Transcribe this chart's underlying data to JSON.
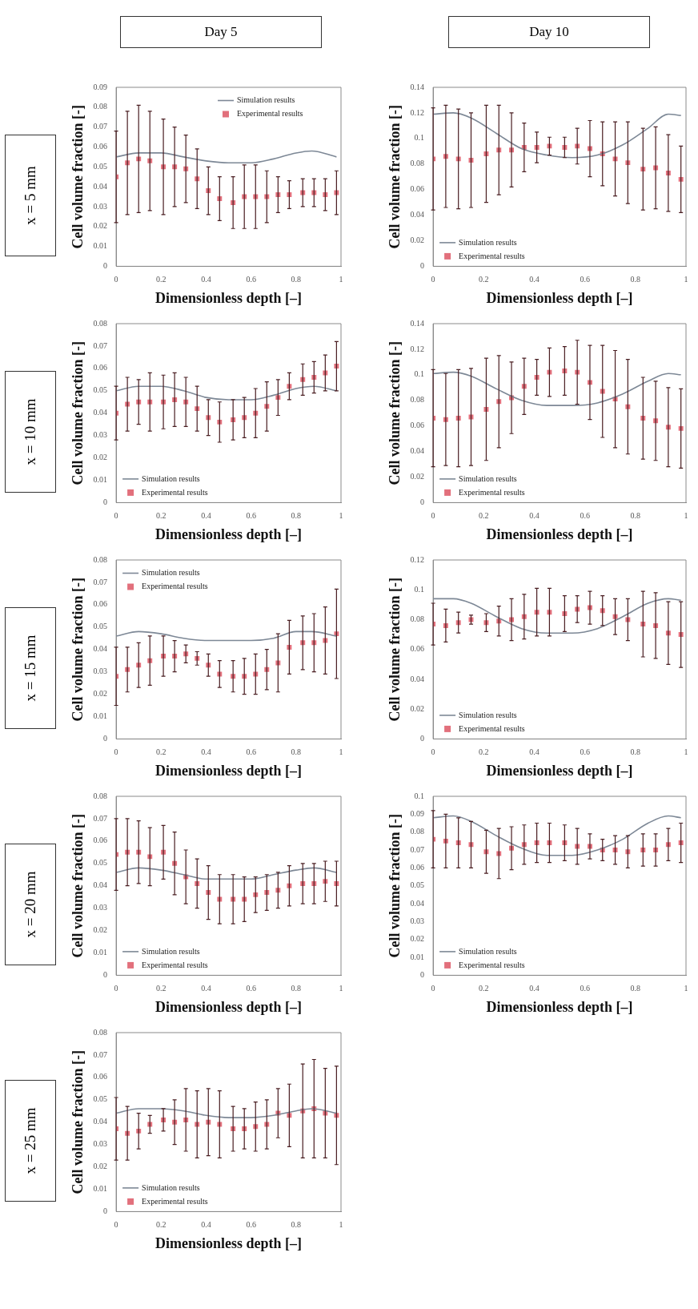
{
  "chart_data": [
    {
      "type": "scatter",
      "title": "Day 5",
      "subtitle": "x = 5 mm",
      "xlabel": "Dimensionless depth [–]",
      "ylabel": "Cell volume fraction [-]",
      "xlim": [
        0,
        1
      ],
      "xticks": [
        0,
        0.2,
        0.4,
        0.6,
        0.8,
        1
      ],
      "ylim": [
        0,
        0.09
      ],
      "yticks": [
        0,
        0.01,
        0.02,
        0.03,
        0.04,
        0.05,
        0.06,
        0.07,
        0.08,
        0.09
      ],
      "legend": "top right",
      "series": [
        {
          "name": "Simulation results",
          "type": "line",
          "marker": "none",
          "color": "#7d8896",
          "x": [
            0,
            0.1,
            0.2,
            0.3,
            0.4,
            0.5,
            0.6,
            0.7,
            0.8,
            0.87,
            0.98
          ],
          "values": [
            0.055,
            0.057,
            0.057,
            0.055,
            0.053,
            0.052,
            0.052,
            0.054,
            0.057,
            0.058,
            0.055
          ]
        },
        {
          "name": "Experimental results",
          "type": "scatter",
          "marker": "square",
          "color": "#e2707c",
          "x": [
            0,
            0.05,
            0.1,
            0.15,
            0.21,
            0.26,
            0.31,
            0.36,
            0.41,
            0.46,
            0.52,
            0.57,
            0.62,
            0.67,
            0.72,
            0.77,
            0.83,
            0.88,
            0.93,
            0.98
          ],
          "values": [
            0.045,
            0.052,
            0.054,
            0.053,
            0.05,
            0.05,
            0.049,
            0.044,
            0.038,
            0.034,
            0.032,
            0.035,
            0.035,
            0.035,
            0.036,
            0.036,
            0.037,
            0.037,
            0.036,
            0.037
          ],
          "errors": [
            0.023,
            0.026,
            0.027,
            0.025,
            0.024,
            0.02,
            0.017,
            0.015,
            0.012,
            0.011,
            0.013,
            0.016,
            0.016,
            0.013,
            0.009,
            0.007,
            0.007,
            0.007,
            0.008,
            0.011
          ]
        }
      ]
    },
    {
      "type": "scatter",
      "title": "Day 10",
      "xlabel": "Dimensionless depth [–]",
      "ylabel": "Cell volume fraction [-]",
      "xlim": [
        0,
        1
      ],
      "xticks": [
        0,
        0.2,
        0.4,
        0.6,
        0.8,
        1
      ],
      "ylim": [
        0,
        0.14
      ],
      "yticks": [
        0,
        0.02,
        0.04,
        0.06,
        0.08,
        0.1,
        0.12,
        0.14
      ],
      "legend": "bottom left",
      "series": [
        {
          "name": "Simulation results",
          "type": "line",
          "marker": "none",
          "color": "#7d8896",
          "x": [
            0,
            0.08,
            0.15,
            0.25,
            0.35,
            0.45,
            0.55,
            0.65,
            0.75,
            0.85,
            0.93,
            0.98
          ],
          "values": [
            0.119,
            0.12,
            0.116,
            0.104,
            0.092,
            0.087,
            0.085,
            0.087,
            0.095,
            0.108,
            0.119,
            0.118
          ]
        },
        {
          "name": "Experimental results",
          "type": "scatter",
          "marker": "square",
          "color": "#e2707c",
          "x": [
            0,
            0.05,
            0.1,
            0.15,
            0.21,
            0.26,
            0.31,
            0.36,
            0.41,
            0.46,
            0.52,
            0.57,
            0.62,
            0.67,
            0.72,
            0.77,
            0.83,
            0.88,
            0.93,
            0.98
          ],
          "values": [
            0.084,
            0.086,
            0.084,
            0.083,
            0.088,
            0.091,
            0.091,
            0.093,
            0.093,
            0.094,
            0.093,
            0.094,
            0.092,
            0.088,
            0.084,
            0.081,
            0.076,
            0.077,
            0.073,
            0.068
          ],
          "errors": [
            0.04,
            0.04,
            0.039,
            0.037,
            0.038,
            0.035,
            0.029,
            0.019,
            0.012,
            0.007,
            0.008,
            0.014,
            0.022,
            0.025,
            0.029,
            0.032,
            0.032,
            0.032,
            0.03,
            0.026
          ]
        }
      ]
    },
    {
      "type": "scatter",
      "subtitle": "x = 10 mm",
      "xlabel": "Dimensionless depth [–]",
      "ylabel": "Cell volume fraction [-]",
      "xlim": [
        0,
        1
      ],
      "xticks": [
        0,
        0.2,
        0.4,
        0.6,
        0.8,
        1
      ],
      "ylim": [
        0,
        0.08
      ],
      "yticks": [
        0,
        0.01,
        0.02,
        0.03,
        0.04,
        0.05,
        0.06,
        0.07,
        0.08
      ],
      "legend": "bottom left",
      "series": [
        {
          "name": "Simulation results",
          "type": "line",
          "marker": "none",
          "color": "#7d8896",
          "x": [
            0,
            0.1,
            0.2,
            0.3,
            0.4,
            0.5,
            0.6,
            0.7,
            0.8,
            0.88,
            0.98
          ],
          "values": [
            0.05,
            0.052,
            0.052,
            0.05,
            0.047,
            0.046,
            0.046,
            0.048,
            0.051,
            0.052,
            0.05
          ]
        },
        {
          "name": "Experimental results",
          "type": "scatter",
          "marker": "square",
          "color": "#e2707c",
          "x": [
            0,
            0.05,
            0.1,
            0.15,
            0.21,
            0.26,
            0.31,
            0.36,
            0.41,
            0.46,
            0.52,
            0.57,
            0.62,
            0.67,
            0.72,
            0.77,
            0.83,
            0.88,
            0.93,
            0.98
          ],
          "values": [
            0.04,
            0.044,
            0.045,
            0.045,
            0.045,
            0.046,
            0.045,
            0.042,
            0.038,
            0.036,
            0.037,
            0.038,
            0.04,
            0.043,
            0.047,
            0.052,
            0.055,
            0.056,
            0.058,
            0.061
          ],
          "errors": [
            0.012,
            0.012,
            0.01,
            0.013,
            0.012,
            0.012,
            0.011,
            0.01,
            0.008,
            0.009,
            0.009,
            0.009,
            0.011,
            0.011,
            0.008,
            0.006,
            0.007,
            0.007,
            0.008,
            0.011
          ]
        }
      ]
    },
    {
      "type": "scatter",
      "xlabel": "Dimensionless depth [–]",
      "ylabel": "Cell volume fraction [-]",
      "xlim": [
        0,
        1
      ],
      "xticks": [
        0,
        0.2,
        0.4,
        0.6,
        0.8,
        1
      ],
      "ylim": [
        0,
        0.14
      ],
      "yticks": [
        0,
        0.02,
        0.04,
        0.06,
        0.08,
        0.1,
        0.12,
        0.14
      ],
      "legend": "bottom left",
      "series": [
        {
          "name": "Simulation results",
          "type": "line",
          "marker": "none",
          "color": "#7d8896",
          "x": [
            0,
            0.08,
            0.15,
            0.25,
            0.35,
            0.45,
            0.55,
            0.65,
            0.75,
            0.85,
            0.93,
            0.98
          ],
          "values": [
            0.101,
            0.102,
            0.099,
            0.089,
            0.08,
            0.076,
            0.076,
            0.078,
            0.085,
            0.095,
            0.101,
            0.1
          ]
        },
        {
          "name": "Experimental results",
          "type": "scatter",
          "marker": "square",
          "color": "#e2707c",
          "x": [
            0,
            0.05,
            0.1,
            0.15,
            0.21,
            0.26,
            0.31,
            0.36,
            0.41,
            0.46,
            0.52,
            0.57,
            0.62,
            0.67,
            0.72,
            0.77,
            0.83,
            0.88,
            0.93,
            0.98
          ],
          "values": [
            0.066,
            0.065,
            0.066,
            0.067,
            0.073,
            0.079,
            0.082,
            0.091,
            0.098,
            0.102,
            0.103,
            0.102,
            0.094,
            0.087,
            0.081,
            0.075,
            0.066,
            0.064,
            0.059,
            0.058
          ],
          "errors": [
            0.038,
            0.036,
            0.038,
            0.038,
            0.04,
            0.036,
            0.028,
            0.022,
            0.014,
            0.019,
            0.019,
            0.025,
            0.029,
            0.036,
            0.038,
            0.037,
            0.032,
            0.031,
            0.031,
            0.031
          ]
        }
      ]
    },
    {
      "type": "scatter",
      "subtitle": "x = 15 mm",
      "xlabel": "Dimensionless depth [–]",
      "ylabel": "Cell volume fraction [-]",
      "xlim": [
        0,
        1
      ],
      "xticks": [
        0,
        0.2,
        0.4,
        0.6,
        0.8,
        1
      ],
      "ylim": [
        0,
        0.08
      ],
      "yticks": [
        0,
        0.01,
        0.02,
        0.03,
        0.04,
        0.05,
        0.06,
        0.07,
        0.08
      ],
      "legend": "top left",
      "series": [
        {
          "name": "Simulation results",
          "type": "line",
          "marker": "none",
          "color": "#7d8896",
          "x": [
            0,
            0.1,
            0.2,
            0.3,
            0.4,
            0.5,
            0.6,
            0.7,
            0.8,
            0.87,
            0.98
          ],
          "values": [
            0.046,
            0.048,
            0.047,
            0.045,
            0.044,
            0.044,
            0.044,
            0.045,
            0.048,
            0.048,
            0.046
          ]
        },
        {
          "name": "Experimental results",
          "type": "scatter",
          "marker": "square",
          "color": "#e2707c",
          "x": [
            0,
            0.05,
            0.1,
            0.15,
            0.21,
            0.26,
            0.31,
            0.36,
            0.41,
            0.46,
            0.52,
            0.57,
            0.62,
            0.67,
            0.72,
            0.77,
            0.83,
            0.88,
            0.93,
            0.98
          ],
          "values": [
            0.028,
            0.031,
            0.033,
            0.035,
            0.037,
            0.037,
            0.038,
            0.036,
            0.033,
            0.029,
            0.028,
            0.028,
            0.029,
            0.031,
            0.034,
            0.041,
            0.043,
            0.043,
            0.044,
            0.047
          ],
          "errors": [
            0.013,
            0.01,
            0.01,
            0.011,
            0.009,
            0.007,
            0.004,
            0.003,
            0.005,
            0.006,
            0.007,
            0.008,
            0.009,
            0.009,
            0.013,
            0.012,
            0.012,
            0.013,
            0.015,
            0.02
          ]
        }
      ]
    },
    {
      "type": "scatter",
      "xlabel": "Dimensionless depth [–]",
      "ylabel": "Cell volume fraction [-]",
      "xlim": [
        0,
        1
      ],
      "xticks": [
        0,
        0.2,
        0.4,
        0.6,
        0.8,
        1
      ],
      "ylim": [
        0,
        0.12
      ],
      "yticks": [
        0,
        0.02,
        0.04,
        0.06,
        0.08,
        0.1,
        0.12
      ],
      "legend": "bottom left",
      "series": [
        {
          "name": "Simulation results",
          "type": "line",
          "marker": "none",
          "color": "#7d8896",
          "x": [
            0,
            0.08,
            0.15,
            0.25,
            0.35,
            0.45,
            0.55,
            0.65,
            0.75,
            0.85,
            0.93,
            0.98
          ],
          "values": [
            0.094,
            0.094,
            0.091,
            0.082,
            0.074,
            0.071,
            0.071,
            0.074,
            0.082,
            0.091,
            0.094,
            0.093
          ]
        },
        {
          "name": "Experimental results",
          "type": "scatter",
          "marker": "square",
          "color": "#e2707c",
          "x": [
            0,
            0.05,
            0.1,
            0.15,
            0.21,
            0.26,
            0.31,
            0.36,
            0.41,
            0.46,
            0.52,
            0.57,
            0.62,
            0.67,
            0.72,
            0.77,
            0.83,
            0.88,
            0.93,
            0.98
          ],
          "values": [
            0.077,
            0.076,
            0.078,
            0.08,
            0.078,
            0.079,
            0.08,
            0.082,
            0.085,
            0.085,
            0.084,
            0.087,
            0.088,
            0.086,
            0.082,
            0.08,
            0.077,
            0.076,
            0.071,
            0.07
          ],
          "errors": [
            0.014,
            0.011,
            0.007,
            0.003,
            0.006,
            0.01,
            0.014,
            0.015,
            0.016,
            0.016,
            0.012,
            0.009,
            0.011,
            0.01,
            0.012,
            0.014,
            0.022,
            0.022,
            0.021,
            0.022
          ]
        }
      ]
    },
    {
      "type": "scatter",
      "subtitle": "x = 20 mm",
      "xlabel": "Dimensionless depth [–]",
      "ylabel": "Cell volume fraction [-]",
      "xlim": [
        0,
        1
      ],
      "xticks": [
        0,
        0.2,
        0.4,
        0.6,
        0.8,
        1
      ],
      "ylim": [
        0,
        0.08
      ],
      "yticks": [
        0,
        0.01,
        0.02,
        0.03,
        0.04,
        0.05,
        0.06,
        0.07,
        0.08
      ],
      "legend": "bottom left",
      "series": [
        {
          "name": "Simulation results",
          "type": "line",
          "marker": "none",
          "color": "#7d8896",
          "x": [
            0,
            0.1,
            0.2,
            0.3,
            0.4,
            0.5,
            0.6,
            0.7,
            0.8,
            0.88,
            0.98
          ],
          "values": [
            0.046,
            0.048,
            0.047,
            0.045,
            0.043,
            0.043,
            0.043,
            0.045,
            0.047,
            0.048,
            0.046
          ]
        },
        {
          "name": "Experimental results",
          "type": "scatter",
          "marker": "square",
          "color": "#e2707c",
          "x": [
            0,
            0.05,
            0.1,
            0.15,
            0.21,
            0.26,
            0.31,
            0.36,
            0.41,
            0.46,
            0.52,
            0.57,
            0.62,
            0.67,
            0.72,
            0.77,
            0.83,
            0.88,
            0.93,
            0.98
          ],
          "values": [
            0.054,
            0.055,
            0.055,
            0.053,
            0.055,
            0.05,
            0.044,
            0.041,
            0.037,
            0.034,
            0.034,
            0.034,
            0.036,
            0.037,
            0.038,
            0.04,
            0.041,
            0.041,
            0.042,
            0.041
          ],
          "errors": [
            0.016,
            0.015,
            0.014,
            0.013,
            0.012,
            0.014,
            0.012,
            0.011,
            0.012,
            0.011,
            0.011,
            0.01,
            0.008,
            0.008,
            0.008,
            0.009,
            0.009,
            0.009,
            0.009,
            0.01
          ]
        }
      ]
    },
    {
      "type": "scatter",
      "xlabel": "Dimensionless depth [–]",
      "ylabel": "Cell volume fraction [-]",
      "xlim": [
        0,
        1
      ],
      "xticks": [
        0,
        0.2,
        0.4,
        0.6,
        0.8,
        1
      ],
      "ylim": [
        0,
        0.1
      ],
      "yticks": [
        0,
        0.01,
        0.02,
        0.03,
        0.04,
        0.05,
        0.06,
        0.07,
        0.08,
        0.09,
        0.1
      ],
      "legend": "bottom left",
      "series": [
        {
          "name": "Simulation results",
          "type": "line",
          "marker": "none",
          "color": "#7d8896",
          "x": [
            0,
            0.08,
            0.15,
            0.25,
            0.35,
            0.45,
            0.55,
            0.65,
            0.75,
            0.85,
            0.93,
            0.98
          ],
          "values": [
            0.088,
            0.089,
            0.086,
            0.078,
            0.071,
            0.067,
            0.067,
            0.07,
            0.076,
            0.085,
            0.089,
            0.088
          ]
        },
        {
          "name": "Experimental results",
          "type": "scatter",
          "marker": "square",
          "color": "#e2707c",
          "x": [
            0,
            0.05,
            0.1,
            0.15,
            0.21,
            0.26,
            0.31,
            0.36,
            0.41,
            0.46,
            0.52,
            0.57,
            0.62,
            0.67,
            0.72,
            0.77,
            0.83,
            0.88,
            0.93,
            0.98
          ],
          "values": [
            0.076,
            0.075,
            0.074,
            0.073,
            0.069,
            0.068,
            0.071,
            0.073,
            0.074,
            0.074,
            0.074,
            0.072,
            0.072,
            0.07,
            0.07,
            0.069,
            0.07,
            0.07,
            0.073,
            0.074
          ],
          "errors": [
            0.016,
            0.015,
            0.014,
            0.013,
            0.012,
            0.014,
            0.012,
            0.011,
            0.011,
            0.011,
            0.01,
            0.01,
            0.007,
            0.006,
            0.008,
            0.009,
            0.009,
            0.009,
            0.009,
            0.011
          ]
        }
      ]
    },
    {
      "type": "scatter",
      "subtitle": "x = 25 mm",
      "xlabel": "Dimensionless depth [–]",
      "ylabel": "Cell volume fraction [-]",
      "xlim": [
        0,
        1
      ],
      "xticks": [
        0,
        0.2,
        0.4,
        0.6,
        0.8,
        1
      ],
      "ylim": [
        0,
        0.08
      ],
      "yticks": [
        0,
        0.01,
        0.02,
        0.03,
        0.04,
        0.05,
        0.06,
        0.07,
        0.08
      ],
      "legend": "bottom left",
      "series": [
        {
          "name": "Simulation results",
          "type": "line",
          "marker": "none",
          "color": "#7d8896",
          "x": [
            0,
            0.1,
            0.2,
            0.3,
            0.4,
            0.5,
            0.6,
            0.7,
            0.8,
            0.87,
            0.98
          ],
          "values": [
            0.044,
            0.046,
            0.046,
            0.045,
            0.043,
            0.042,
            0.042,
            0.043,
            0.045,
            0.046,
            0.044
          ]
        },
        {
          "name": "Experimental results",
          "type": "scatter",
          "marker": "square",
          "color": "#e2707c",
          "x": [
            0,
            0.05,
            0.1,
            0.15,
            0.21,
            0.26,
            0.31,
            0.36,
            0.41,
            0.46,
            0.52,
            0.57,
            0.62,
            0.67,
            0.72,
            0.77,
            0.83,
            0.88,
            0.93,
            0.98
          ],
          "values": [
            0.037,
            0.035,
            0.036,
            0.039,
            0.041,
            0.04,
            0.041,
            0.039,
            0.04,
            0.039,
            0.037,
            0.037,
            0.038,
            0.039,
            0.044,
            0.043,
            0.045,
            0.046,
            0.044,
            0.043
          ],
          "errors": [
            0.014,
            0.012,
            0.008,
            0.004,
            0.005,
            0.01,
            0.014,
            0.015,
            0.015,
            0.015,
            0.01,
            0.009,
            0.011,
            0.011,
            0.011,
            0.014,
            0.021,
            0.022,
            0.02,
            0.022
          ]
        }
      ]
    }
  ]
}
